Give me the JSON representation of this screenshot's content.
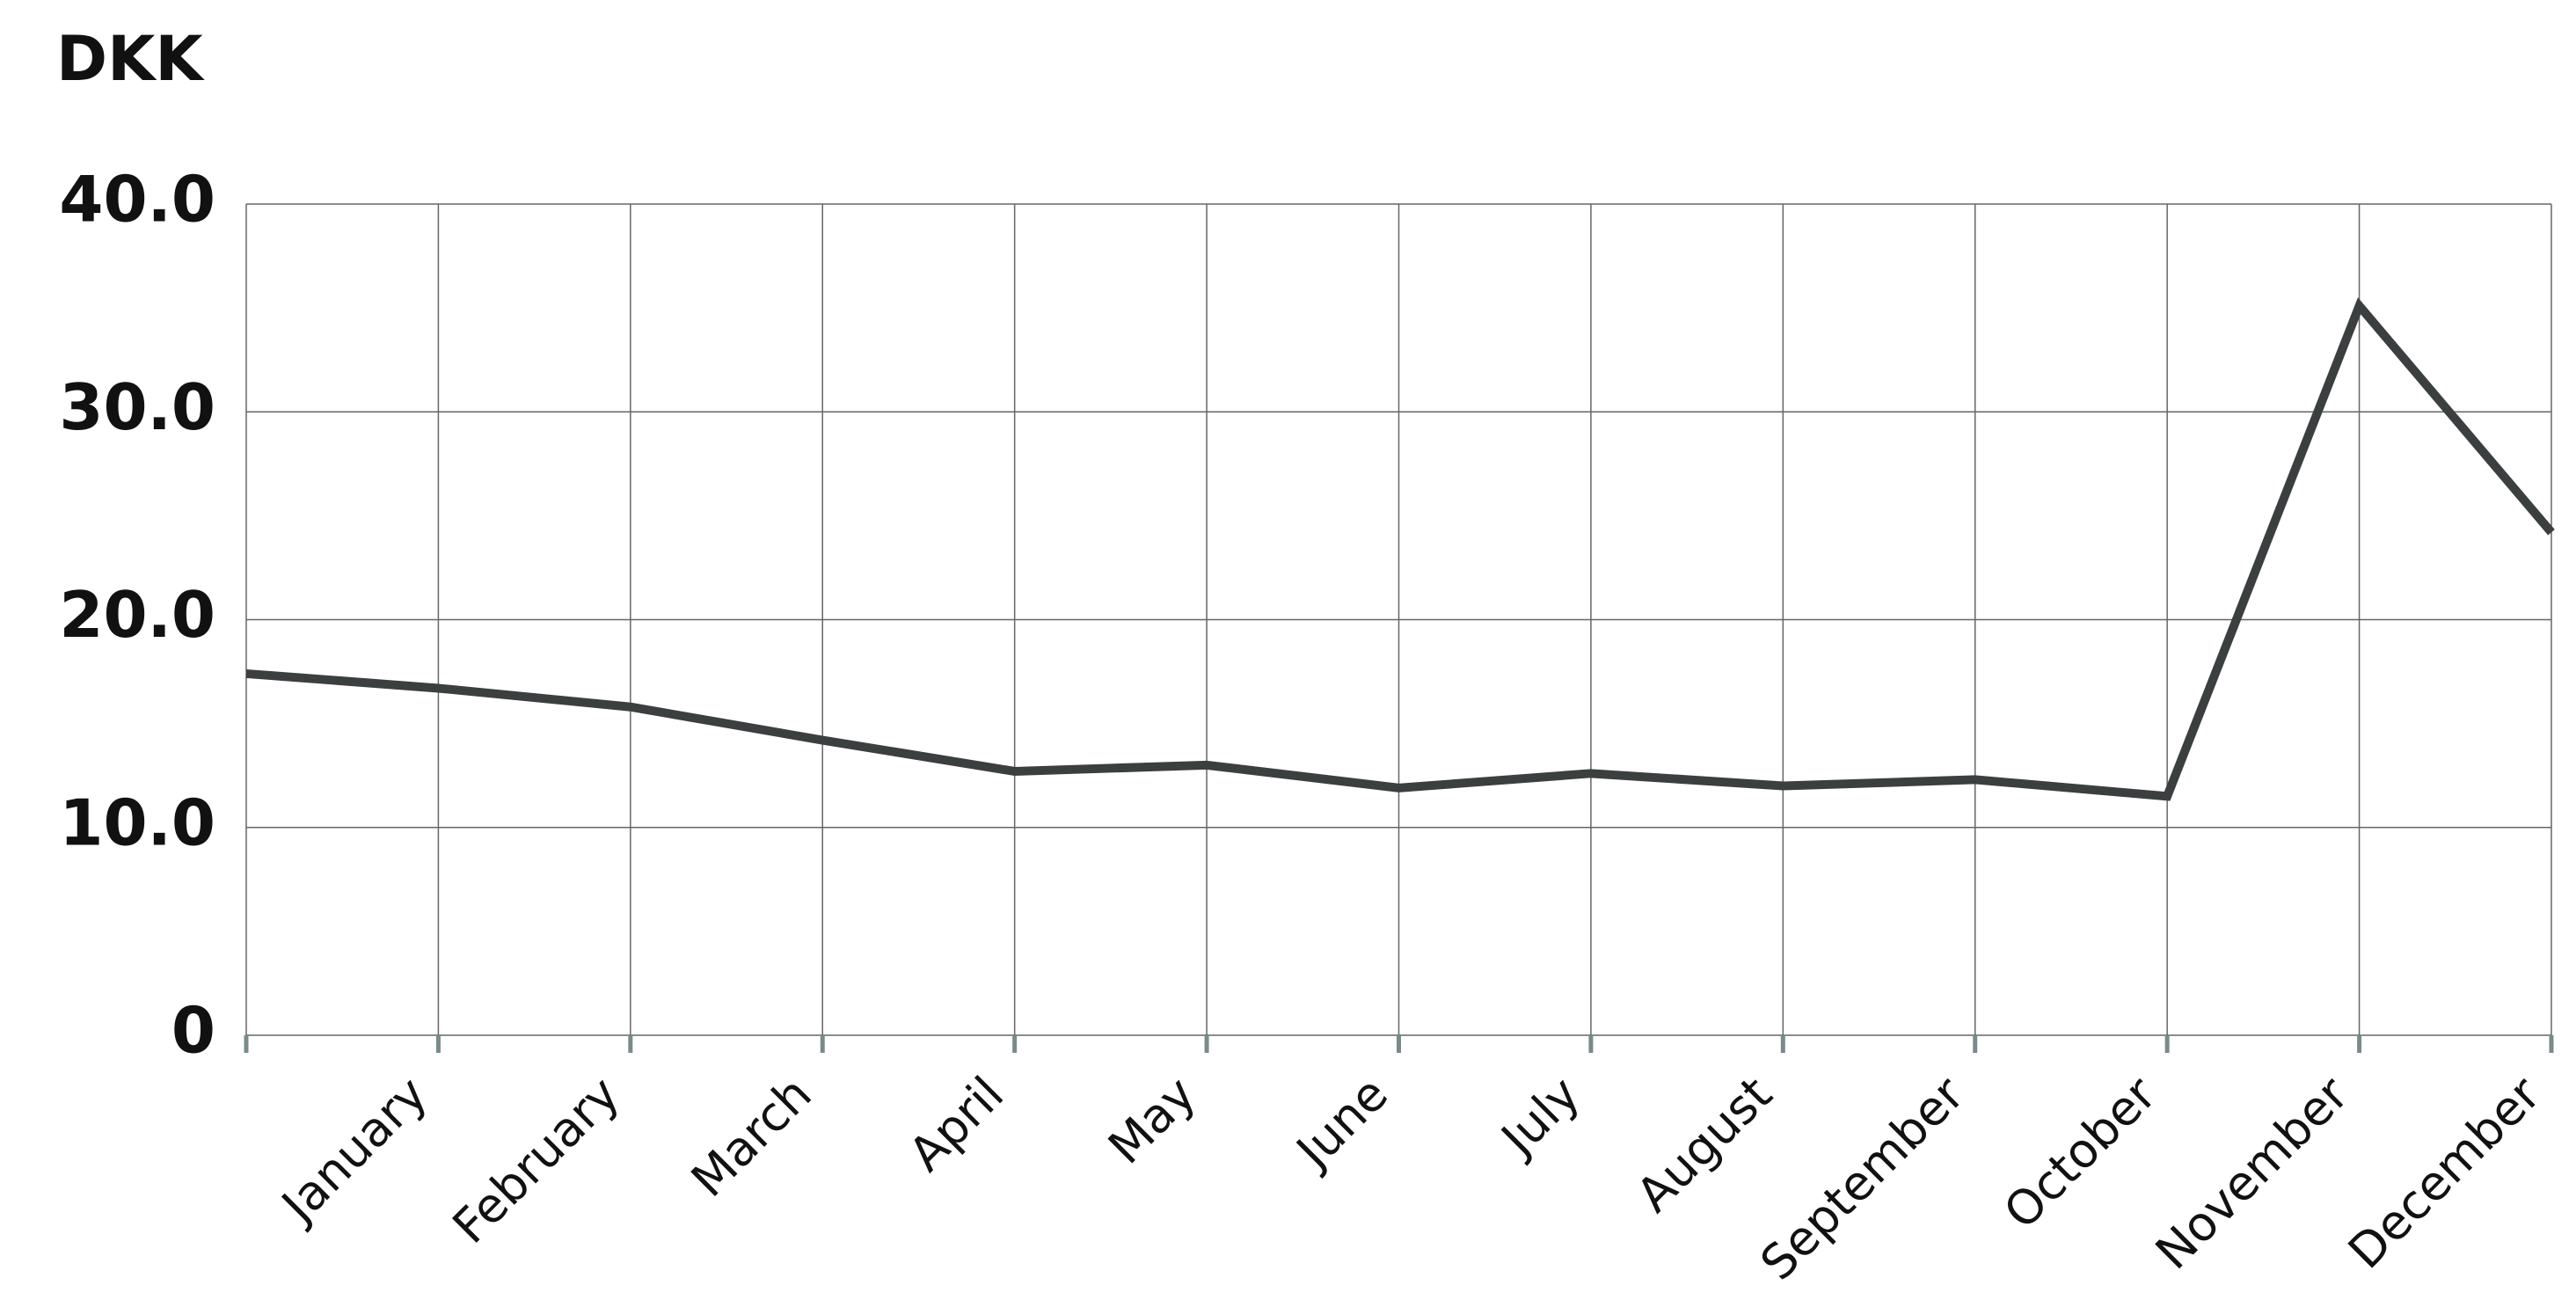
{
  "chart_data": {
    "type": "line",
    "title": "DKK",
    "categories": [
      null,
      "January",
      "February",
      "March",
      "April",
      "May",
      "June",
      "July",
      "August",
      "September",
      "October",
      "November",
      "December"
    ],
    "series": [
      {
        "color": "#3c3f3f",
        "values": [
          17.4,
          16.7,
          15.8,
          14.2,
          12.7,
          13.0,
          11.9,
          12.6,
          12.0,
          12.3,
          11.5,
          35.1,
          24.2
        ]
      }
    ],
    "ylim": [
      0,
      40
    ],
    "yticks": [
      0,
      {
        "value": 10,
        "label": "10.0"
      },
      {
        "value": 20,
        "label": "20.0"
      },
      {
        "value": 30,
        "label": "30.0"
      },
      {
        "value": 40,
        "label": "40.0"
      }
    ],
    "grid": true
  }
}
